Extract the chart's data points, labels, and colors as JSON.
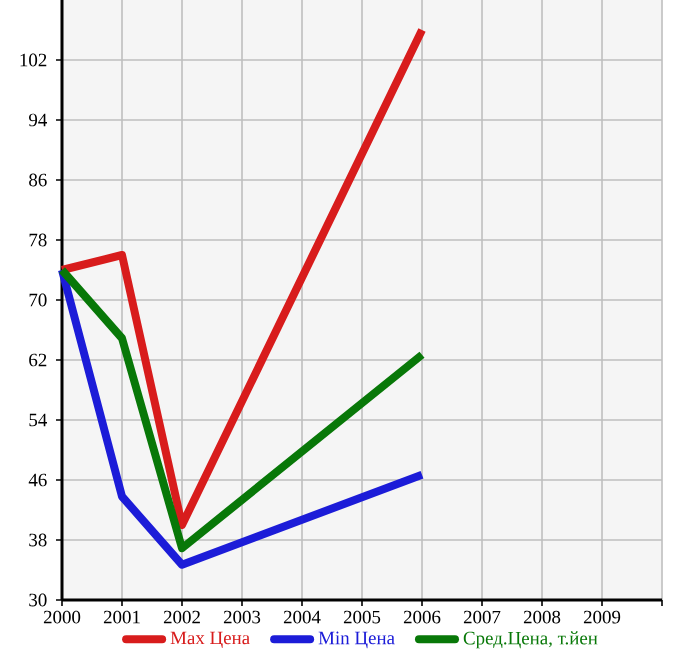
{
  "chart_data": {
    "type": "line",
    "x": [
      2000,
      2001,
      2002,
      2006
    ],
    "series": [
      {
        "name": "Max Цена",
        "color": "#d81c1c",
        "values": [
          74,
          76,
          40,
          106
        ]
      },
      {
        "name": "Min Цена",
        "color": "#1c1cd8",
        "values": [
          74,
          43.8,
          34.7,
          46.7
        ]
      },
      {
        "name": "Сред.Цена, т.йен",
        "color": "#087808",
        "values": [
          74,
          64.9,
          36.9,
          62.7
        ]
      }
    ],
    "xlim": [
      2000,
      2010
    ],
    "xticks": [
      2000,
      2001,
      2002,
      2003,
      2004,
      2005,
      2006,
      2007,
      2008,
      2009,
      {
        "value": 2010,
        "label": null
      }
    ],
    "ylim": [
      30,
      110
    ],
    "yticks": [
      30,
      38,
      46,
      54,
      62,
      70,
      78,
      86,
      94,
      102
    ],
    "grid": true,
    "legend": "bottom",
    "marker": "none",
    "line_style": "solid"
  }
}
